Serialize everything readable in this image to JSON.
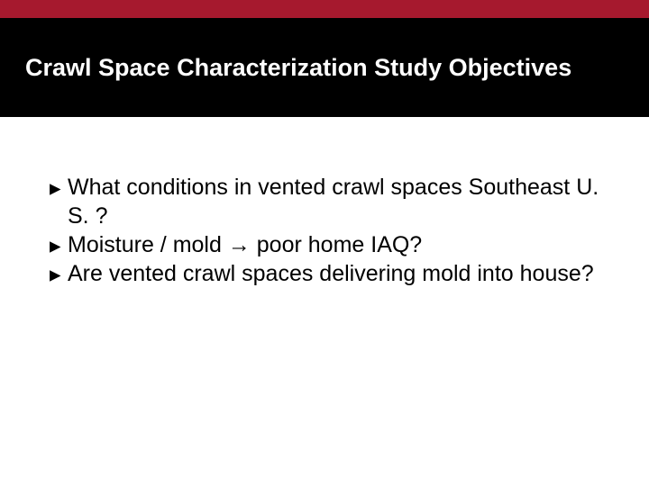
{
  "colors": {
    "accent": "#a6192e",
    "title_bg": "#000000",
    "title_text": "#ffffff",
    "body_bg": "#ffffff",
    "body_text": "#000000"
  },
  "layout": {
    "accent_bar_height": 20,
    "title_bar_height": 110
  },
  "typography": {
    "title_fontsize": 27,
    "body_fontsize": 25,
    "bullet_marker": "▸"
  },
  "title": "Crawl Space Characterization Study Objectives",
  "bullets": [
    "What conditions in vented crawl spaces Southeast U. S. ?",
    "Moisture / mold → poor home IAQ?",
    "Are vented crawl spaces delivering mold into house?"
  ]
}
